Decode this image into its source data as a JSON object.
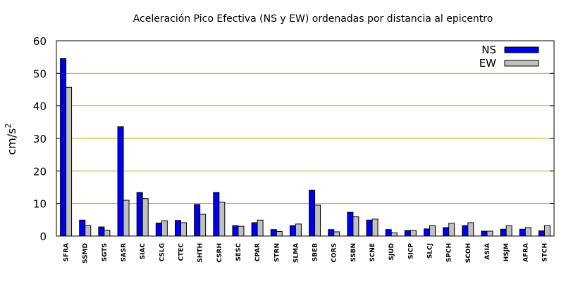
{
  "chart_data": {
    "type": "bar",
    "title": "Aceleración Pico Efectiva (NS y EW) ordenadas por distancia al epicentro",
    "ylabel": "cm/s",
    "ylabel_sup": "2",
    "xlabel": "",
    "ylim": [
      0,
      60
    ],
    "yticks": [
      0,
      10,
      20,
      30,
      40,
      50,
      60
    ],
    "grid": true,
    "legend_position": "top-right",
    "categories": [
      "SFRA",
      "SSMD",
      "SGTS",
      "SASR",
      "SIAC",
      "CSLG",
      "CTEC",
      "SHTH",
      "CSRH",
      "SESC",
      "CPAR",
      "STRN",
      "SLMA",
      "SBEB",
      "CORS",
      "SSBN",
      "SCNE",
      "SJUD",
      "SICP",
      "SLCJ",
      "SPCH",
      "SCOH",
      "ASIA",
      "HSJM",
      "AFRA",
      "STCH"
    ],
    "series": [
      {
        "name": "NS",
        "color": "#0000ee",
        "values": [
          54.5,
          4.9,
          2.8,
          33.6,
          13.4,
          4.0,
          4.8,
          9.7,
          13.4,
          3.2,
          4.1,
          2.0,
          3.2,
          14.1,
          2.0,
          7.3,
          4.9,
          2.0,
          1.7,
          2.2,
          2.6,
          3.2,
          1.5,
          2.1,
          2.1,
          1.6
        ]
      },
      {
        "name": "EW",
        "color": "#c0c0c0",
        "values": [
          45.7,
          3.2,
          1.8,
          11.0,
          11.5,
          4.7,
          4.1,
          6.7,
          10.4,
          3.0,
          4.9,
          1.4,
          3.7,
          9.5,
          1.3,
          5.9,
          5.2,
          1.0,
          1.7,
          3.2,
          3.9,
          4.1,
          1.5,
          3.2,
          2.6,
          3.2
        ]
      }
    ]
  }
}
